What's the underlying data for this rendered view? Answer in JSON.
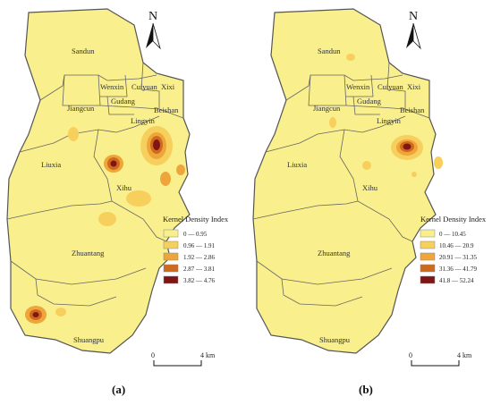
{
  "districts": {
    "sandun": "Sandun",
    "wenxin": "Wenxin",
    "cuiyuan": "Cuiyuan",
    "xixi": "Xixi",
    "jiangcun": "Jiangcun",
    "gudang": "Gudang",
    "beishan": "Beishan",
    "lingyin": "Lingyin",
    "liuxia": "Liuxia",
    "xihu": "Xihu",
    "zhuantang": "Zhuantang",
    "shuangpu": "Shuangpu"
  },
  "north": "N",
  "scale": {
    "zero": "0",
    "end": "4 km"
  },
  "legend_title": "Kernel Density Index",
  "colors": {
    "base": "#f9ef8c",
    "c1": "#f9ef8c",
    "c2": "#f7cf5c",
    "c3": "#eea53b",
    "c4": "#cf6a1c",
    "c5": "#7f1515",
    "boundary": "#555555"
  },
  "panels": [
    {
      "label": "(a)",
      "legend": [
        "0 — 0.95",
        "0.96 — 1.91",
        "1.92 — 2.86",
        "2.87 — 3.81",
        "3.82 — 4.76"
      ]
    },
    {
      "label": "(b)",
      "legend": [
        "0 — 10.45",
        "10.46 — 20.9",
        "20.91 — 31.35",
        "31.36 — 41.79",
        "41.8 — 52.24"
      ]
    }
  ]
}
